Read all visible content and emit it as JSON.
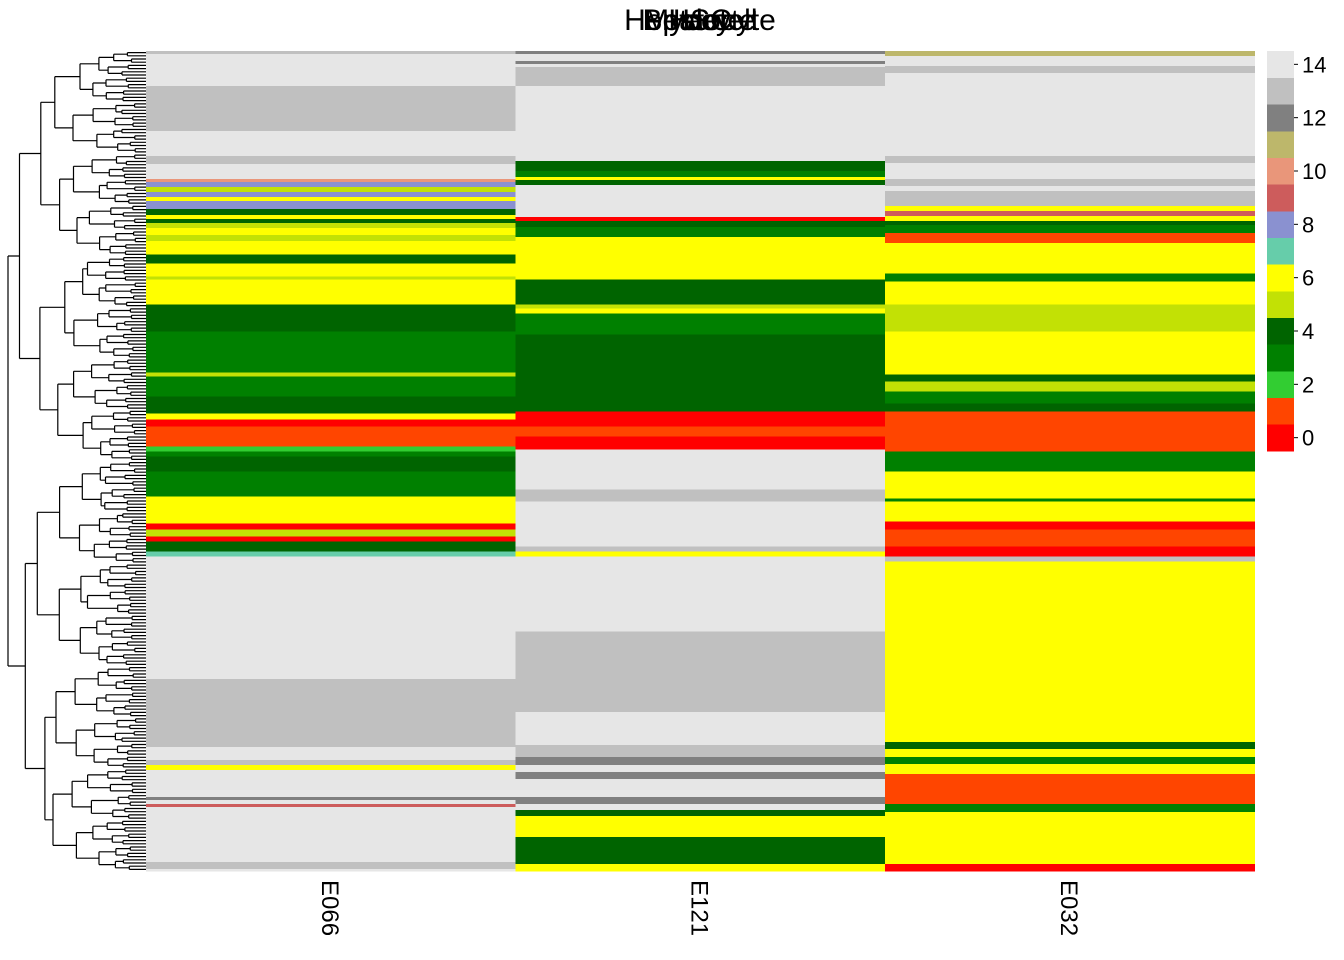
{
  "chart_data": {
    "type": "heatmap",
    "titles": [
      "HSC",
      "Hepatocyte",
      "Myocyte",
      "Beta cell",
      "Islet"
    ],
    "columns": [
      "E066",
      "E121",
      "E032"
    ],
    "legend": {
      "ticks": [
        0,
        2,
        4,
        6,
        8,
        10,
        12,
        14
      ],
      "placement": "right",
      "colors": [
        "#FF0000",
        "#FF4500",
        "#32CD32",
        "#008000",
        "#006400",
        "#C2E105",
        "#FFFF00",
        "#66CDAA",
        "#8A91D0",
        "#CD5C5C",
        "#E9967A",
        "#BDB76B",
        "#808080",
        "#C0C0C0",
        "#E6E6E6"
      ]
    },
    "dendrogram": "rows",
    "segments": [
      [
        [
          0,
          3,
          13
        ],
        [
          3,
          15,
          14
        ],
        [
          15,
          35,
          14
        ],
        [
          35,
          80,
          13
        ],
        [
          80,
          105,
          14
        ],
        [
          105,
          113,
          13
        ],
        [
          113,
          128,
          14
        ],
        [
          128,
          131,
          10
        ],
        [
          131,
          136,
          8
        ],
        [
          136,
          141,
          5
        ],
        [
          141,
          146,
          8
        ],
        [
          146,
          150,
          6
        ],
        [
          150,
          158,
          8
        ],
        [
          158,
          164,
          4
        ],
        [
          164,
          168,
          6
        ],
        [
          168,
          172,
          4
        ],
        [
          172,
          177,
          5
        ],
        [
          177,
          184,
          6
        ],
        [
          184,
          190,
          5
        ],
        [
          190,
          203,
          6
        ],
        [
          203,
          212,
          4
        ],
        [
          212,
          225,
          6
        ],
        [
          225,
          228,
          5
        ],
        [
          228,
          253,
          6
        ],
        [
          253,
          280,
          4
        ],
        [
          280,
          321,
          3
        ],
        [
          321,
          325,
          5
        ],
        [
          325,
          345,
          3
        ],
        [
          345,
          362,
          4
        ],
        [
          362,
          368,
          6
        ],
        [
          368,
          375,
          0
        ],
        [
          375,
          395,
          1
        ],
        [
          395,
          400,
          2
        ],
        [
          400,
          405,
          3
        ],
        [
          405,
          420,
          4
        ],
        [
          420,
          445,
          3
        ],
        [
          445,
          472,
          6
        ],
        [
          472,
          478,
          0
        ],
        [
          478,
          485,
          5
        ],
        [
          485,
          490,
          0
        ],
        [
          490,
          500,
          4
        ],
        [
          500,
          505,
          7
        ],
        [
          505,
          510,
          14
        ],
        [
          510,
          627,
          14
        ],
        [
          627,
          695,
          13
        ],
        [
          695,
          708,
          14
        ],
        [
          708,
          713,
          13
        ],
        [
          713,
          718,
          6
        ],
        [
          718,
          745,
          14
        ],
        [
          745,
          748,
          12
        ],
        [
          748,
          752,
          14
        ],
        [
          752,
          755,
          9
        ],
        [
          755,
          810,
          14
        ],
        [
          810,
          817,
          13
        ],
        [
          817,
          819,
          14
        ]
      ],
      [
        [
          0,
          3,
          12
        ],
        [
          3,
          10,
          14
        ],
        [
          10,
          13,
          12
        ],
        [
          13,
          16,
          14
        ],
        [
          16,
          35,
          13
        ],
        [
          35,
          110,
          14
        ],
        [
          110,
          120,
          4
        ],
        [
          120,
          126,
          3
        ],
        [
          126,
          129,
          6
        ],
        [
          129,
          134,
          4
        ],
        [
          134,
          138,
          14
        ],
        [
          138,
          166,
          14
        ],
        [
          166,
          170,
          0
        ],
        [
          170,
          176,
          4
        ],
        [
          176,
          186,
          3
        ],
        [
          186,
          210,
          6
        ],
        [
          210,
          228,
          6
        ],
        [
          228,
          253,
          4
        ],
        [
          253,
          257,
          5
        ],
        [
          257,
          262,
          6
        ],
        [
          262,
          283,
          3
        ],
        [
          283,
          360,
          4
        ],
        [
          360,
          375,
          0
        ],
        [
          375,
          385,
          1
        ],
        [
          385,
          398,
          0
        ],
        [
          398,
          408,
          14
        ],
        [
          408,
          438,
          14
        ],
        [
          438,
          450,
          13
        ],
        [
          450,
          475,
          14
        ],
        [
          475,
          495,
          14
        ],
        [
          495,
          500,
          13
        ],
        [
          500,
          505,
          6
        ],
        [
          505,
          580,
          14
        ],
        [
          580,
          660,
          13
        ],
        [
          660,
          693,
          14
        ],
        [
          693,
          705,
          13
        ],
        [
          705,
          713,
          12
        ],
        [
          713,
          720,
          14
        ],
        [
          720,
          727,
          12
        ],
        [
          727,
          745,
          14
        ],
        [
          745,
          752,
          12
        ],
        [
          752,
          758,
          14
        ],
        [
          758,
          764,
          4
        ],
        [
          764,
          768,
          6
        ],
        [
          768,
          785,
          6
        ],
        [
          785,
          812,
          4
        ],
        [
          812,
          819,
          6
        ]
      ],
      [
        [
          0,
          5,
          11
        ],
        [
          5,
          15,
          14
        ],
        [
          15,
          22,
          13
        ],
        [
          22,
          105,
          14
        ],
        [
          105,
          112,
          13
        ],
        [
          112,
          128,
          14
        ],
        [
          128,
          135,
          13
        ],
        [
          135,
          140,
          14
        ],
        [
          140,
          155,
          13
        ],
        [
          155,
          160,
          6
        ],
        [
          160,
          165,
          9
        ],
        [
          165,
          170,
          6
        ],
        [
          170,
          174,
          4
        ],
        [
          174,
          182,
          3
        ],
        [
          182,
          192,
          1
        ],
        [
          192,
          208,
          6
        ],
        [
          208,
          222,
          6
        ],
        [
          222,
          230,
          3
        ],
        [
          230,
          253,
          6
        ],
        [
          253,
          267,
          5
        ],
        [
          267,
          280,
          5
        ],
        [
          280,
          323,
          6
        ],
        [
          323,
          330,
          4
        ],
        [
          330,
          340,
          5
        ],
        [
          340,
          352,
          3
        ],
        [
          352,
          360,
          4
        ],
        [
          360,
          400,
          1
        ],
        [
          400,
          420,
          3
        ],
        [
          420,
          447,
          6
        ],
        [
          447,
          450,
          3
        ],
        [
          450,
          470,
          6
        ],
        [
          470,
          478,
          0
        ],
        [
          478,
          495,
          1
        ],
        [
          495,
          505,
          0
        ],
        [
          505,
          510,
          13
        ],
        [
          510,
          690,
          6
        ],
        [
          690,
          697,
          4
        ],
        [
          697,
          705,
          6
        ],
        [
          705,
          712,
          3
        ],
        [
          712,
          722,
          6
        ],
        [
          722,
          728,
          1
        ],
        [
          728,
          752,
          1
        ],
        [
          752,
          760,
          3
        ],
        [
          760,
          812,
          6
        ],
        [
          812,
          819,
          0
        ]
      ]
    ]
  }
}
